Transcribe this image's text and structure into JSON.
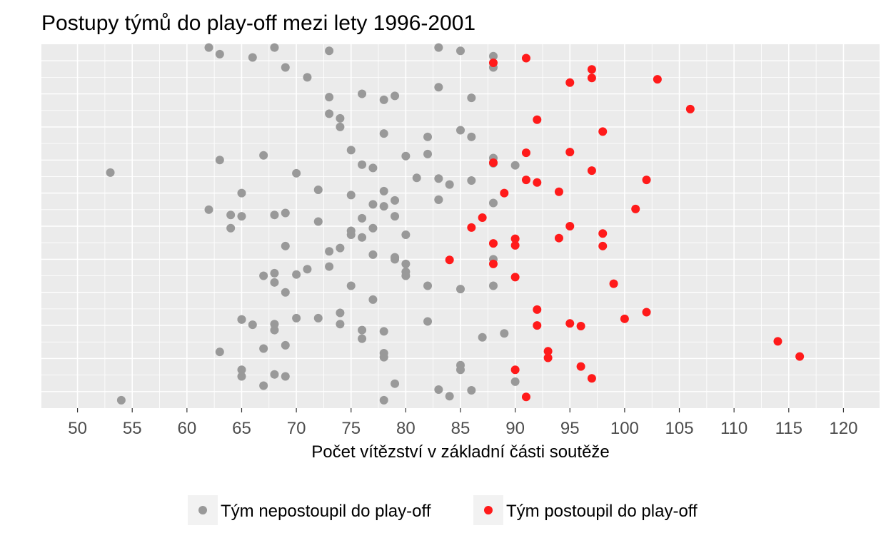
{
  "chart_data": {
    "type": "scatter",
    "title": "Postupy týmů do play-off mezi lety 1996-2001",
    "xlabel": "Počet vítězství v základní části soutěže",
    "ylabel": "",
    "xlim": [
      46.7,
      123.3
    ],
    "x_ticks": [
      "50",
      "55",
      "60",
      "65",
      "70",
      "75",
      "80",
      "85",
      "90",
      "95",
      "100",
      "105",
      "110",
      "115",
      "120"
    ],
    "grid": true,
    "legend_position": "bottom",
    "colors": {
      "panel": "#ebebeb",
      "grid": "#ffffff",
      "not_qualified": "#999999",
      "qualified": "#ff1a1a"
    },
    "series": [
      {
        "name": "Tým nepostoupil do play-off",
        "color": "#999999",
        "x": [
          62,
          63,
          66,
          68,
          69,
          71,
          73,
          83,
          85,
          88,
          88,
          73,
          76,
          78,
          79,
          83,
          86,
          73,
          74,
          74,
          78,
          85,
          86,
          82,
          75,
          67,
          63,
          80,
          82,
          88,
          88,
          76,
          77,
          90,
          53,
          70,
          81,
          83,
          84,
          86,
          72,
          78,
          65,
          75,
          77,
          78,
          79,
          83,
          62,
          64,
          65,
          68,
          69,
          72,
          76,
          77,
          79,
          83,
          88,
          64,
          75,
          75,
          76,
          80,
          69,
          73,
          74,
          77,
          79,
          80,
          88,
          67,
          68,
          70,
          71,
          73,
          79,
          80,
          80,
          68,
          75,
          82,
          85,
          88,
          69,
          77,
          74,
          65,
          70,
          72,
          82,
          68,
          74,
          65,
          66,
          68,
          76,
          78,
          89,
          76,
          87,
          67,
          69,
          63,
          78,
          78,
          85,
          65,
          85,
          68,
          69,
          65,
          90,
          67,
          79,
          83,
          86,
          54,
          78,
          84
        ],
        "y": [
          0.5,
          1.5,
          2,
          0.5,
          3.5,
          5,
          1,
          0.5,
          1,
          1.8,
          3.5,
          8,
          7.5,
          8.4,
          7.8,
          6.5,
          8.1,
          10.5,
          11.2,
          12.5,
          13.5,
          13,
          14,
          14,
          16,
          16.8,
          17.5,
          16.9,
          16.6,
          17.2,
          18,
          18.2,
          18.7,
          18.3,
          19.4,
          19.5,
          20.2,
          20.3,
          21.2,
          20.6,
          22,
          22.2,
          22.5,
          22.8,
          24.2,
          24.5,
          23.6,
          23.5,
          25,
          25.8,
          26,
          25.8,
          25.5,
          26.8,
          26.3,
          27.8,
          26,
          23.5,
          24,
          27.8,
          28.8,
          28.2,
          29.2,
          28.8,
          30.5,
          31.3,
          30.8,
          31.8,
          32.2,
          33.2,
          32.5,
          35,
          34.6,
          34.8,
          34,
          33.6,
          32.5,
          34.4,
          35,
          36,
          36.5,
          36.5,
          37,
          36.5,
          37.5,
          38.6,
          40.6,
          41.6,
          41.4,
          41.4,
          41.9,
          42.3,
          42.3,
          41.6,
          42.4,
          43.2,
          44.5,
          43.4,
          43.7,
          43.2,
          44.3,
          46,
          45.5,
          46.5,
          47.3,
          46.7,
          48.5,
          49.2,
          49.2,
          49.9,
          50.2,
          50.2,
          51,
          51.6,
          51.3,
          52.2,
          52.3,
          53.8,
          53.8,
          53.2
        ]
      },
      {
        "name": "Tým postoupil do play-off",
        "color": "#ff1a1a",
        "x": [
          88,
          91,
          97,
          97,
          95,
          103,
          106,
          92,
          98,
          91,
          95,
          88,
          97,
          91,
          92,
          102,
          89,
          94,
          101,
          87,
          86,
          95,
          98,
          90,
          94,
          88,
          90,
          98,
          84,
          88,
          99,
          90,
          102,
          92,
          100,
          95,
          96,
          92,
          114,
          93,
          116,
          93,
          96,
          90,
          97,
          91
        ],
        "y": [
          2.8,
          2.1,
          3.8,
          5.1,
          5.8,
          5.3,
          9.8,
          11.4,
          13.2,
          16.4,
          16.3,
          17.9,
          19.1,
          20.5,
          20.9,
          20.5,
          22.5,
          22.3,
          24.9,
          26.2,
          27.7,
          27.5,
          28.6,
          29.4,
          29.3,
          30.1,
          30.4,
          30.5,
          32.6,
          33.2,
          36.2,
          35.2,
          40.5,
          40.1,
          41.5,
          42.2,
          42.6,
          42.5,
          44.9,
          46.4,
          47.2,
          47.4,
          48.7,
          49.2,
          50.5,
          53.3
        ]
      }
    ]
  },
  "legend": {
    "items": [
      {
        "label": "Tým nepostoupil do play-off",
        "color": "#999999"
      },
      {
        "label": "Tým postoupil do play-off",
        "color": "#ff1a1a"
      }
    ]
  }
}
